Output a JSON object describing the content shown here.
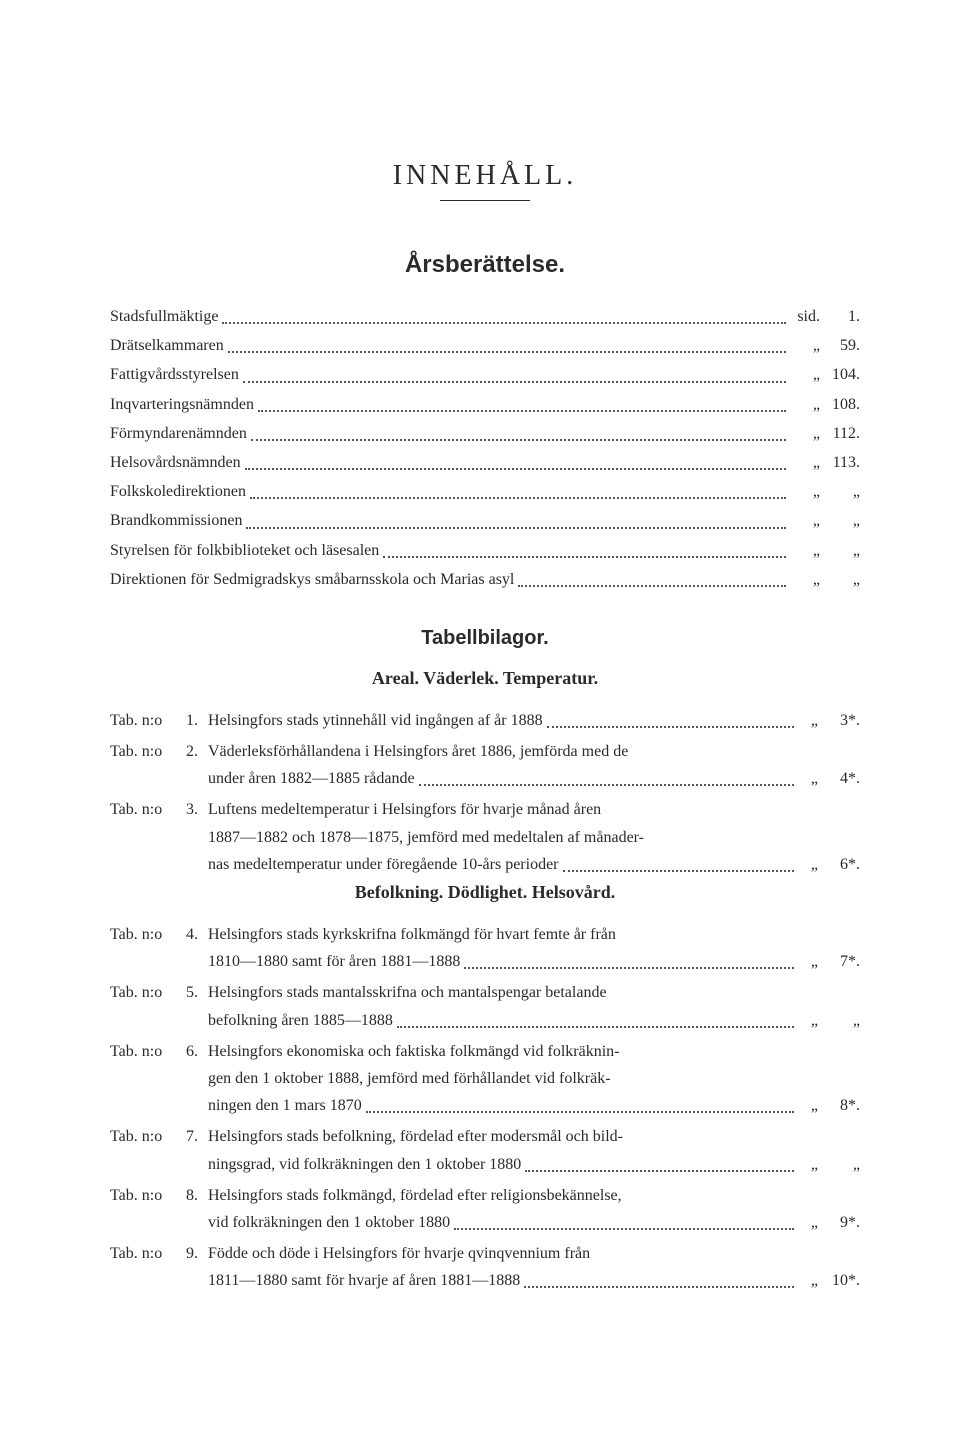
{
  "title": "INNEHÅLL.",
  "section1_title": "Årsberättelse.",
  "toc": [
    {
      "text": "Stadsfullmäktige",
      "label": "sid.",
      "page": "1."
    },
    {
      "text": "Drätselkammaren",
      "label": "„",
      "page": "59."
    },
    {
      "text": "Fattigvårdsstyrelsen",
      "label": "„",
      "page": "104."
    },
    {
      "text": "Inqvarteringsnämnden",
      "label": "„",
      "page": "108."
    },
    {
      "text": "Förmyndarenämnden",
      "label": "„",
      "page": "112."
    },
    {
      "text": "Helsovårdsnämnden",
      "label": "„",
      "page": "113."
    },
    {
      "text": "Folkskoledirektionen",
      "label": "„",
      "page": "„"
    },
    {
      "text": "Brandkommissionen",
      "label": "„",
      "page": "„"
    },
    {
      "text": "Styrelsen för folkbiblioteket och läsesalen",
      "label": "„",
      "page": "„"
    },
    {
      "text": "Direktionen för Sedmigradskys småbarnsskola och Marias asyl",
      "label": "„",
      "page": "„"
    }
  ],
  "section2_title": "Tabellbilagor.",
  "subheading1": "Areal.  Väderlek.  Temperatur.",
  "tabs1": [
    {
      "prefix": "Tab. n:o",
      "num": "1.",
      "lines": [
        "Helsingfors stads ytinnehåll vid ingången af år 1888"
      ],
      "label": "„",
      "page": "3*."
    },
    {
      "prefix": "Tab. n:o",
      "num": "2.",
      "lines": [
        "Väderleksförhållandena i Helsingfors året 1886, jemförda med de",
        "under åren 1882—1885 rådande"
      ],
      "label": "„",
      "page": "4*."
    },
    {
      "prefix": "Tab. n:o",
      "num": "3.",
      "lines": [
        "Luftens medeltemperatur i Helsingfors för hvarje månad åren",
        "1887—1882 och 1878—1875, jemförd med medeltalen af månader-",
        "nas medeltemperatur under föregående 10-års perioder"
      ],
      "label": "„",
      "page": "6*."
    }
  ],
  "subheading2": "Befolkning.  Dödlighet.  Helsovård.",
  "tabs2": [
    {
      "prefix": "Tab. n:o",
      "num": "4.",
      "lines": [
        "Helsingfors stads kyrkskrifna folkmängd för hvart femte år från",
        "1810—1880 samt för åren 1881—1888"
      ],
      "label": "„",
      "page": "7*."
    },
    {
      "prefix": "Tab. n:o",
      "num": "5.",
      "lines": [
        "Helsingfors stads mantalsskrifna och mantalspengar betalande",
        "befolkning åren 1885—1888"
      ],
      "label": "„",
      "page": "„"
    },
    {
      "prefix": "Tab. n:o",
      "num": "6.",
      "lines": [
        "Helsingfors ekonomiska och faktiska folkmängd vid folkräknin-",
        "gen den 1 oktober 1888, jemförd med förhållandet vid folkräk-",
        "ningen den 1 mars 1870"
      ],
      "label": "„",
      "page": "8*."
    },
    {
      "prefix": "Tab. n:o",
      "num": "7.",
      "lines": [
        "Helsingfors stads befolkning, fördelad efter modersmål och bild-",
        "ningsgrad, vid folkräkningen den 1 oktober 1880"
      ],
      "label": "„",
      "page": "„"
    },
    {
      "prefix": "Tab. n:o",
      "num": "8.",
      "lines": [
        "Helsingfors stads folkmängd, fördelad efter religionsbekännelse,",
        "vid folkräkningen den 1 oktober 1880"
      ],
      "label": "„",
      "page": "9*."
    },
    {
      "prefix": "Tab. n:o",
      "num": "9.",
      "lines": [
        "Födde och döde i Helsingfors för hvarje qvinqvennium från",
        "1811—1880 samt för hvarje af åren 1881—1888"
      ],
      "label": "„",
      "page": "10*."
    }
  ]
}
